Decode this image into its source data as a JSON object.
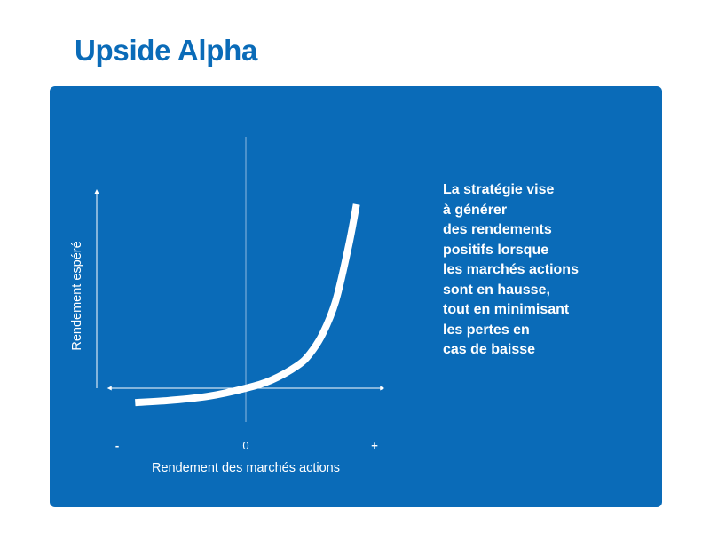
{
  "header": {
    "title": "Upside Alpha"
  },
  "chart_data": {
    "type": "line",
    "title": "",
    "xlabel": "Rendement des marchés actions",
    "ylabel": "Rendement espéré",
    "x_tick_labels": [
      "-",
      "0",
      "+"
    ],
    "x_ticks": [
      -1,
      0,
      1
    ],
    "xlim": [
      -1.05,
      1.05
    ],
    "ylim": [
      -0.12,
      1.0
    ],
    "grid": false,
    "legend": "none",
    "series": [
      {
        "x": [
          -0.86,
          -0.6,
          -0.3,
          0,
          0.2,
          0.4,
          0.5,
          0.6,
          0.7,
          0.8,
          0.86
        ],
        "values": [
          -0.07,
          -0.06,
          -0.04,
          0.0,
          0.04,
          0.11,
          0.17,
          0.27,
          0.43,
          0.7,
          0.9
        ]
      }
    ],
    "colors": {
      "panel": "#0a6bb8",
      "curve": "#ffffff",
      "axes": "#ffffff",
      "zero_line": "#8fb9e0"
    }
  },
  "description": {
    "lines": [
      "La stratégie vise",
      "à générer",
      "des rendements",
      "positifs lorsque",
      "les marchés actions",
      "sont en hausse,",
      "tout en minimisant",
      "les pertes en",
      "cas de baisse"
    ]
  }
}
